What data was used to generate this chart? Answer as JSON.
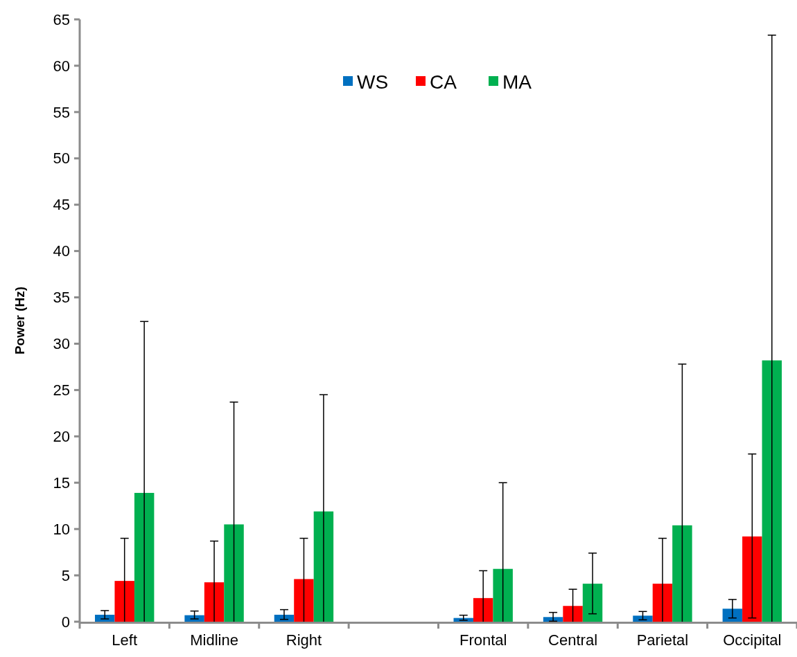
{
  "chart_data": {
    "type": "bar",
    "ylabel": "Power (Hz)",
    "categories": [
      "Left",
      "Midline",
      "Right",
      null,
      "Frontal",
      "Central",
      "Parietal",
      "Occipital"
    ],
    "series": [
      {
        "name": "WS",
        "color": "#0070c0",
        "values": [
          0.75,
          0.7,
          0.75,
          null,
          0.4,
          0.5,
          0.65,
          1.4
        ],
        "errors": [
          [
            0.3,
            1.2
          ],
          [
            0.3,
            1.15
          ],
          [
            0.25,
            1.3
          ],
          null,
          [
            0.15,
            0.7
          ],
          [
            0.05,
            1.0
          ],
          [
            0.2,
            1.1
          ],
          [
            0.4,
            2.4
          ]
        ]
      },
      {
        "name": "CA",
        "color": "#ff0000",
        "values": [
          4.4,
          4.25,
          4.6,
          null,
          2.55,
          1.7,
          4.1,
          9.2
        ],
        "errors": [
          [
            0,
            9.0
          ],
          [
            0,
            8.7
          ],
          [
            0,
            9.0
          ],
          null,
          [
            0,
            5.5
          ],
          [
            0,
            3.5
          ],
          [
            0,
            9.0
          ],
          [
            0.4,
            18.1
          ]
        ]
      },
      {
        "name": "MA",
        "color": "#00b050",
        "values": [
          13.9,
          10.5,
          11.9,
          null,
          5.7,
          4.1,
          10.4,
          28.2
        ],
        "errors": [
          [
            0,
            32.4
          ],
          [
            0,
            23.7
          ],
          [
            0,
            24.5
          ],
          null,
          [
            0,
            15.0
          ],
          [
            0.85,
            7.4
          ],
          [
            0,
            27.8
          ],
          [
            0,
            63.3
          ]
        ]
      }
    ],
    "ylim": [
      0,
      65
    ],
    "yticks": [
      0,
      5,
      10,
      15,
      20,
      25,
      30,
      35,
      40,
      45,
      50,
      55,
      60,
      65
    ],
    "grid": false,
    "legend": "top"
  }
}
